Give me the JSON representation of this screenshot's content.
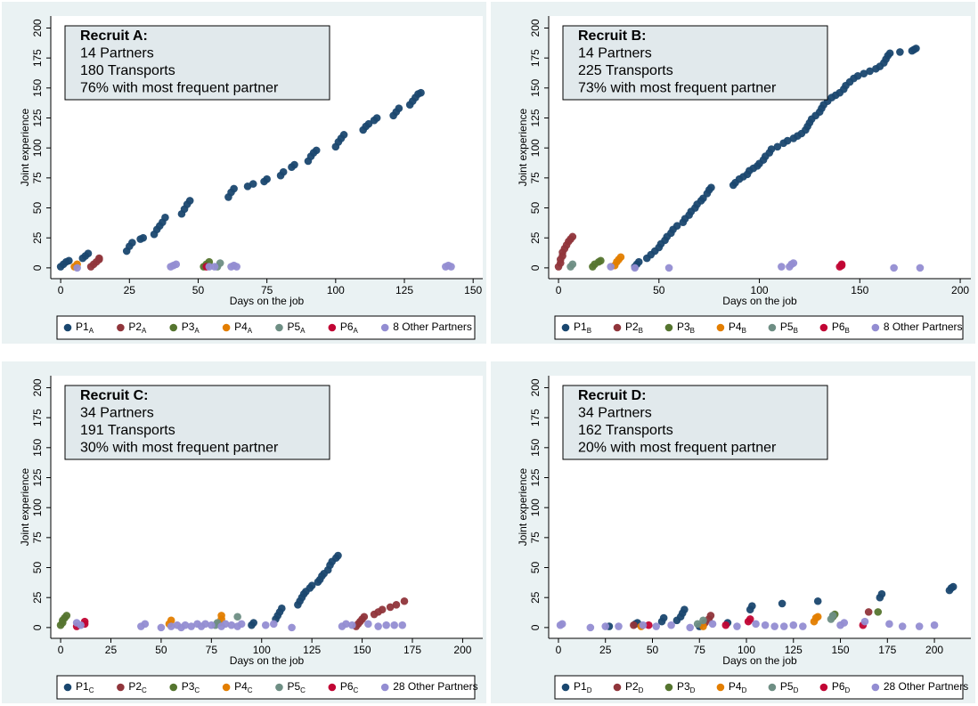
{
  "chart_data": [
    {
      "type": "scatter",
      "annotation": [
        "Recruit A:",
        "14 Partners",
        "180 Transports",
        "76% with most frequent partner"
      ],
      "xlabel": "Days on the job",
      "ylabel": "Joint experience",
      "xlim": [
        -3.6,
        153.5
      ],
      "ylim": [
        -9,
        210
      ],
      "xticks": [
        0,
        25,
        50,
        75,
        100,
        125,
        150
      ],
      "yticks": [
        0,
        25,
        50,
        75,
        100,
        125,
        150,
        175,
        200
      ],
      "series": [
        {
          "name": "P1",
          "subscript": "A",
          "color": "#1a476f",
          "x": [
            0,
            1,
            2,
            3,
            8,
            9,
            10,
            24,
            25,
            26,
            29,
            30,
            34,
            35,
            36,
            37,
            38,
            44,
            45,
            46,
            47,
            61,
            62,
            63,
            68,
            70,
            74,
            75,
            80,
            81,
            84,
            85,
            90,
            91,
            92,
            93,
            100,
            101,
            102,
            103,
            110,
            111,
            112,
            114,
            115,
            121,
            122,
            123,
            127,
            128,
            129,
            130,
            131
          ],
          "values": [
            1,
            3,
            5,
            6,
            8,
            10,
            12,
            14,
            18,
            21,
            24,
            25,
            28,
            32,
            35,
            38,
            42,
            45,
            49,
            53,
            56,
            59,
            63,
            66,
            68,
            70,
            72,
            74,
            77,
            80,
            84,
            86,
            89,
            93,
            96,
            98,
            101,
            105,
            108,
            111,
            115,
            118,
            120,
            123,
            125,
            127,
            130,
            133,
            136,
            139,
            142,
            145,
            146
          ]
        },
        {
          "name": "P2",
          "subscript": "A",
          "color": "#90353b",
          "x": [
            11,
            12,
            13,
            14,
            14
          ],
          "values": [
            1,
            3,
            5,
            7,
            8
          ]
        },
        {
          "name": "P3",
          "subscript": "A",
          "color": "#55752f",
          "x": [
            52,
            53,
            54
          ],
          "values": [
            1,
            3,
            5
          ]
        },
        {
          "name": "P4",
          "subscript": "A",
          "color": "#e37e00",
          "x": [
            5,
            6
          ],
          "values": [
            1,
            3
          ]
        },
        {
          "name": "P5",
          "subscript": "A",
          "color": "#6e8e84",
          "x": [
            57,
            58
          ],
          "values": [
            1,
            4
          ]
        },
        {
          "name": "P6",
          "subscript": "A",
          "color": "#c10534",
          "x": [
            53
          ],
          "values": [
            1
          ]
        },
        {
          "name": "8 Other Partners",
          "color": "#938dd2",
          "x": [
            6,
            40,
            41,
            42,
            54,
            56,
            62,
            63,
            64,
            140,
            141,
            142
          ],
          "values": [
            0,
            1,
            2,
            3,
            1,
            1,
            1,
            2,
            1,
            1,
            2,
            1
          ]
        }
      ]
    },
    {
      "type": "scatter",
      "annotation": [
        "Recruit B:",
        "14 Partners",
        "225 Transports",
        "73% with most frequent partner"
      ],
      "xlabel": "Days on the job",
      "ylabel": "Joint experience",
      "xlim": [
        -4.9,
        205.3
      ],
      "ylim": [
        -9,
        210
      ],
      "xticks": [
        0,
        50,
        100,
        150,
        200
      ],
      "yticks": [
        0,
        25,
        50,
        75,
        100,
        125,
        150,
        175,
        200
      ],
      "series": [
        {
          "name": "P1",
          "subscript": "B",
          "color": "#1a476f",
          "x": [
            38,
            39,
            40,
            44,
            46,
            48,
            50,
            51,
            53,
            54,
            56,
            57,
            59,
            62,
            63,
            65,
            66,
            68,
            69,
            71,
            72,
            74,
            75,
            76,
            87,
            88,
            90,
            92,
            94,
            95,
            97,
            99,
            100,
            102,
            103,
            105,
            106,
            109,
            112,
            114,
            117,
            119,
            121,
            123,
            124,
            125,
            126,
            128,
            130,
            131,
            132,
            134,
            136,
            138,
            140,
            142,
            143,
            145,
            147,
            149,
            152,
            155,
            158,
            160,
            162,
            163,
            164,
            165,
            170,
            176,
            177,
            178
          ],
          "values": [
            1,
            3,
            5,
            8,
            11,
            14,
            17,
            20,
            23,
            26,
            29,
            32,
            35,
            38,
            41,
            44,
            47,
            50,
            53,
            56,
            58,
            62,
            65,
            67,
            69,
            71,
            74,
            76,
            78,
            81,
            83,
            85,
            87,
            90,
            93,
            96,
            99,
            101,
            104,
            106,
            108,
            110,
            112,
            115,
            118,
            121,
            124,
            127,
            130,
            133,
            136,
            139,
            142,
            144,
            146,
            149,
            152,
            155,
            158,
            160,
            162,
            164,
            166,
            168,
            171,
            174,
            177,
            179,
            180,
            181,
            182,
            183
          ]
        },
        {
          "name": "P2",
          "subscript": "B",
          "color": "#90353b",
          "x": [
            0,
            1,
            1,
            2,
            2,
            3,
            4,
            5,
            6,
            7
          ],
          "values": [
            1,
            4,
            7,
            10,
            13,
            16,
            19,
            22,
            24,
            26
          ]
        },
        {
          "name": "P3",
          "subscript": "B",
          "color": "#55752f",
          "x": [
            17,
            18,
            20,
            21
          ],
          "values": [
            1,
            3,
            5,
            6
          ]
        },
        {
          "name": "P4",
          "subscript": "B",
          "color": "#e37e00",
          "x": [
            28,
            29,
            30,
            31
          ],
          "values": [
            2,
            5,
            7,
            9
          ]
        },
        {
          "name": "P5",
          "subscript": "B",
          "color": "#6e8e84",
          "x": [
            6,
            7
          ],
          "values": [
            1,
            3
          ]
        },
        {
          "name": "P6",
          "subscript": "B",
          "color": "#c10534",
          "x": [
            140,
            141,
            141
          ],
          "values": [
            1,
            2,
            3
          ]
        },
        {
          "name": "8 Other Partners",
          "color": "#938dd2",
          "x": [
            26,
            38,
            55,
            111,
            115,
            116,
            117,
            167,
            180
          ],
          "values": [
            1,
            0,
            0,
            1,
            1,
            3,
            4,
            0,
            0
          ]
        }
      ]
    },
    {
      "type": "scatter",
      "annotation": [
        "Recruit C:",
        "34 Partners",
        "191 Transports",
        "30% with most frequent partner"
      ],
      "xlabel": "Days on the job",
      "ylabel": "Joint experience",
      "xlim": [
        -4.9,
        210
      ],
      "ylim": [
        -9,
        210
      ],
      "xticks": [
        0,
        25,
        50,
        75,
        100,
        125,
        150,
        175,
        200
      ],
      "yticks": [
        0,
        25,
        50,
        75,
        100,
        125,
        150,
        175,
        200
      ],
      "series": [
        {
          "name": "P1",
          "subscript": "C",
          "color": "#1a476f",
          "x": [
            95,
            96,
            107,
            108,
            109,
            110,
            118,
            119,
            120,
            121,
            122,
            124,
            125,
            128,
            129,
            130,
            131,
            133,
            134,
            135,
            137,
            138
          ],
          "values": [
            2,
            4,
            7,
            10,
            13,
            16,
            19,
            22,
            25,
            28,
            30,
            33,
            35,
            38,
            40,
            43,
            45,
            48,
            52,
            55,
            58,
            60
          ]
        },
        {
          "name": "P2",
          "subscript": "C",
          "color": "#90353b",
          "x": [
            147,
            148,
            149,
            150,
            151,
            156,
            158,
            160,
            164,
            167,
            171
          ],
          "values": [
            1,
            3,
            5,
            7,
            9,
            11,
            13,
            15,
            17,
            19,
            22
          ]
        },
        {
          "name": "P3",
          "subscript": "C",
          "color": "#55752f",
          "x": [
            0,
            1,
            1,
            2,
            3
          ],
          "values": [
            2,
            4,
            6,
            8,
            10
          ]
        },
        {
          "name": "P4",
          "subscript": "C",
          "color": "#e37e00",
          "x": [
            54,
            55,
            79,
            80,
            80
          ],
          "values": [
            3,
            6,
            4,
            7,
            10
          ]
        },
        {
          "name": "P5",
          "subscript": "C",
          "color": "#6e8e84",
          "x": [
            77,
            78,
            88
          ],
          "values": [
            2,
            4,
            9
          ]
        },
        {
          "name": "P6",
          "subscript": "C",
          "color": "#c10534",
          "x": [
            8,
            12,
            12
          ],
          "values": [
            1,
            3,
            5
          ]
        },
        {
          "name": "28 Other Partners",
          "color": "#938dd2",
          "x": [
            8,
            10,
            40,
            42,
            50,
            55,
            58,
            60,
            62,
            65,
            68,
            70,
            72,
            75,
            80,
            82,
            85,
            88,
            90,
            102,
            106,
            115,
            140,
            142,
            145,
            153,
            158,
            162,
            166,
            170
          ],
          "values": [
            4,
            2,
            1,
            3,
            0,
            1,
            2,
            0,
            2,
            1,
            3,
            1,
            3,
            2,
            1,
            3,
            2,
            1,
            3,
            2,
            3,
            0,
            1,
            3,
            2,
            3,
            1,
            2,
            2,
            2
          ]
        }
      ]
    },
    {
      "type": "scatter",
      "annotation": [
        "Recruit D:",
        "34 Partners",
        "162 Transports",
        "20% with most frequent partner"
      ],
      "xlabel": "Days on the job",
      "ylabel": "Joint experience",
      "xlim": [
        -5.2,
        219.4
      ],
      "ylim": [
        -9,
        210
      ],
      "xticks": [
        0,
        25,
        50,
        75,
        100,
        125,
        150,
        175,
        200
      ],
      "yticks": [
        0,
        25,
        50,
        75,
        100,
        125,
        150,
        175,
        200
      ],
      "series": [
        {
          "name": "P1",
          "subscript": "D",
          "color": "#1a476f",
          "x": [
            27,
            41,
            42,
            55,
            56,
            63,
            65,
            66,
            67,
            75,
            90,
            102,
            103,
            119,
            138,
            171,
            172,
            208,
            209,
            210
          ],
          "values": [
            1,
            3,
            4,
            5,
            8,
            6,
            9,
            12,
            15,
            1,
            4,
            15,
            18,
            20,
            22,
            25,
            28,
            31,
            33,
            34
          ]
        },
        {
          "name": "P2",
          "subscript": "D",
          "color": "#90353b",
          "x": [
            40,
            78,
            80,
            81,
            165
          ],
          "values": [
            2,
            4,
            7,
            10,
            13
          ]
        },
        {
          "name": "P3",
          "subscript": "D",
          "color": "#55752f",
          "x": [
            146,
            147,
            170
          ],
          "values": [
            9,
            11,
            13
          ]
        },
        {
          "name": "P4",
          "subscript": "D",
          "color": "#e37e00",
          "x": [
            44,
            77,
            136,
            137,
            138
          ],
          "values": [
            1,
            1,
            5,
            8,
            9
          ]
        },
        {
          "name": "P5",
          "subscript": "D",
          "color": "#6e8e84",
          "x": [
            74,
            77,
            145,
            146
          ],
          "values": [
            3,
            6,
            7,
            10
          ]
        },
        {
          "name": "P6",
          "subscript": "D",
          "color": "#c10534",
          "x": [
            48,
            89,
            101,
            102,
            162
          ],
          "values": [
            2,
            2,
            5,
            7,
            2
          ]
        },
        {
          "name": "28 Other Partners",
          "color": "#938dd2",
          "x": [
            1,
            2,
            17,
            25,
            32,
            45,
            52,
            60,
            70,
            82,
            95,
            105,
            110,
            115,
            120,
            125,
            130,
            150,
            152,
            163,
            176,
            183,
            192,
            200
          ],
          "values": [
            2,
            3,
            0,
            1,
            1,
            2,
            1,
            2,
            0,
            3,
            1,
            3,
            2,
            1,
            1,
            2,
            1,
            2,
            4,
            5,
            3,
            1,
            1,
            2
          ]
        }
      ]
    }
  ]
}
